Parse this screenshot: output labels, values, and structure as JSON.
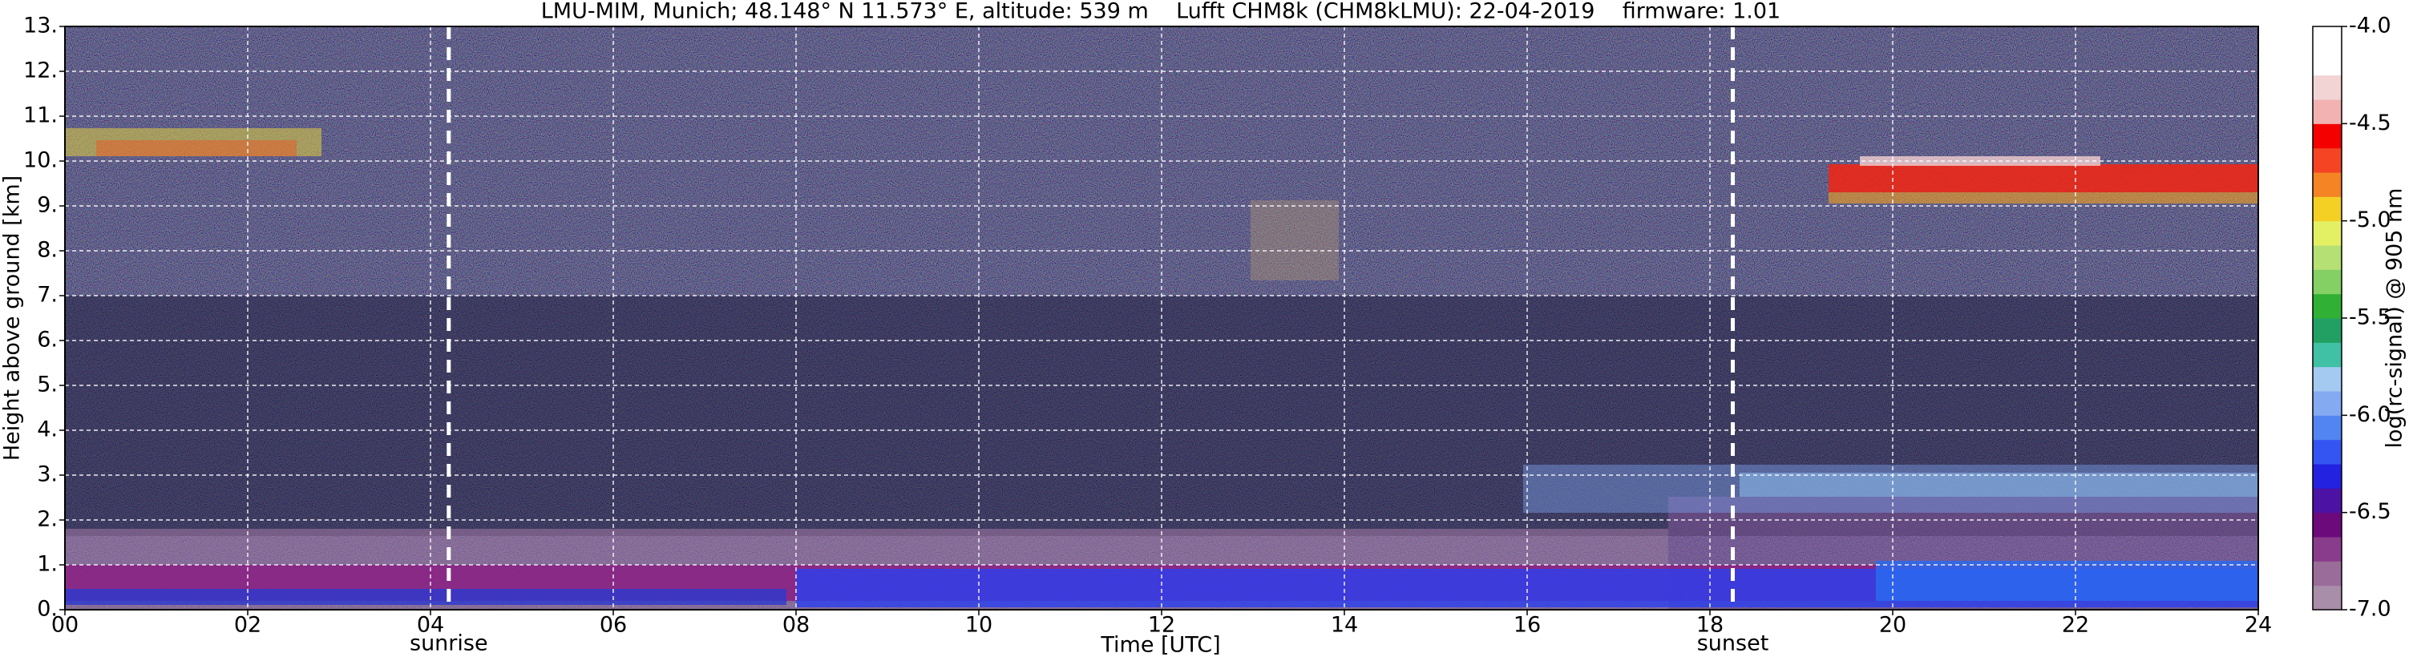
{
  "chart_data": {
    "type": "heatmap",
    "title": "LMU-MIM, Munich; 48.148° N 11.573° E, altitude: 539 m    Lufft CHM8k (CHM8kLMU): 22-04-2019    firmware: 1.01",
    "xlabel": "Time [UTC]",
    "ylabel": "Height above ground [km]",
    "xlim": [
      0,
      24
    ],
    "xticks": [
      {
        "value": 0,
        "label": "00"
      },
      {
        "value": 2,
        "label": "02"
      },
      {
        "value": 4,
        "label": "04"
      },
      {
        "value": 6,
        "label": "06"
      },
      {
        "value": 8,
        "label": "08"
      },
      10,
      12,
      14,
      16,
      18,
      20,
      22,
      24
    ],
    "ylim": [
      0,
      13
    ],
    "yticks": [
      {
        "value": 0,
        "label": "0."
      },
      {
        "value": 1,
        "label": "1."
      },
      {
        "value": 2,
        "label": "2."
      },
      {
        "value": 3,
        "label": "3."
      },
      {
        "value": 4,
        "label": "4."
      },
      {
        "value": 5,
        "label": "5."
      },
      {
        "value": 6,
        "label": "6."
      },
      {
        "value": 7,
        "label": "7."
      },
      {
        "value": 8,
        "label": "8."
      },
      {
        "value": 9,
        "label": "9."
      },
      {
        "value": 10,
        "label": "10."
      },
      {
        "value": 11,
        "label": "11."
      },
      {
        "value": 12,
        "label": "12."
      },
      {
        "value": 13,
        "label": "13."
      }
    ],
    "grid": true,
    "colorbar": {
      "label": "log(rc-signal) @ 905 nm",
      "lim": [
        -7,
        -4
      ],
      "ticks": [
        {
          "value": -7,
          "label": "-7.0"
        },
        -6.5,
        {
          "value": -6,
          "label": "-6.0"
        },
        -5.5,
        {
          "value": -5,
          "label": "-5.0"
        },
        -4.5,
        {
          "value": -4,
          "label": "-4.0"
        }
      ],
      "colors": [
        "#a88ea8",
        "#9a6c9a",
        "#8a3c8c",
        "#6c0a7c",
        "#4c12a4",
        "#2222e0",
        "#3455f2",
        "#5284f2",
        "#84aaf2",
        "#a4caf2",
        "#40c0a4",
        "#22a064",
        "#30b034",
        "#84d064",
        "#b4e074",
        "#e4f064",
        "#f4d024",
        "#f48424",
        "#f44424",
        "#f40000",
        "#f2b2b2",
        "#f2d4d4",
        "#ffffff",
        "#ffffff"
      ]
    },
    "annotations": [
      {
        "text": "sunrise",
        "x": 4.2
      },
      {
        "text": "sunset",
        "x": 18.25
      }
    ]
  }
}
